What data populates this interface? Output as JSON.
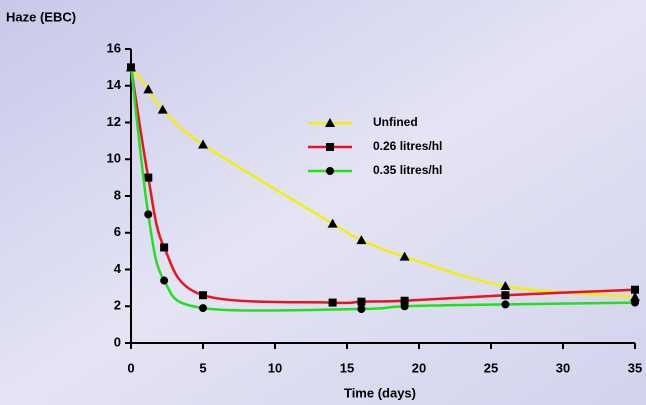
{
  "chart_data": {
    "type": "line",
    "y_label": "Haze (EBC)",
    "x_label": "Time (days)",
    "xlim": [
      0,
      35
    ],
    "xticks": [
      0,
      5,
      10,
      15,
      20,
      25,
      30,
      35
    ],
    "ylim": [
      0,
      16
    ],
    "yticks": [
      0,
      2,
      4,
      6,
      8,
      10,
      12,
      14,
      16
    ],
    "series": [
      {
        "name": "Unfined",
        "color": "#f2ee10",
        "marker": "triangle",
        "x": [
          0,
          1.2,
          2.2,
          5,
          14,
          16,
          19,
          26,
          35
        ],
        "values": [
          15,
          13.8,
          12.7,
          10.8,
          6.5,
          5.6,
          4.7,
          3.1,
          2.5
        ]
      },
      {
        "name": "0.26 litres/hl",
        "color": "#e8141e",
        "marker": "square",
        "x": [
          0,
          1.2,
          2.3,
          5,
          14,
          16,
          19,
          26,
          35
        ],
        "values": [
          15,
          9.0,
          5.2,
          2.6,
          2.2,
          2.25,
          2.3,
          2.6,
          2.9
        ]
      },
      {
        "name": "0.35 litres/hl",
        "color": "#20e020",
        "marker": "circle",
        "x": [
          0,
          1.2,
          2.3,
          5,
          16,
          19,
          26,
          35
        ],
        "values": [
          15,
          7.0,
          3.4,
          1.9,
          1.85,
          2.0,
          2.1,
          2.2
        ]
      }
    ]
  }
}
